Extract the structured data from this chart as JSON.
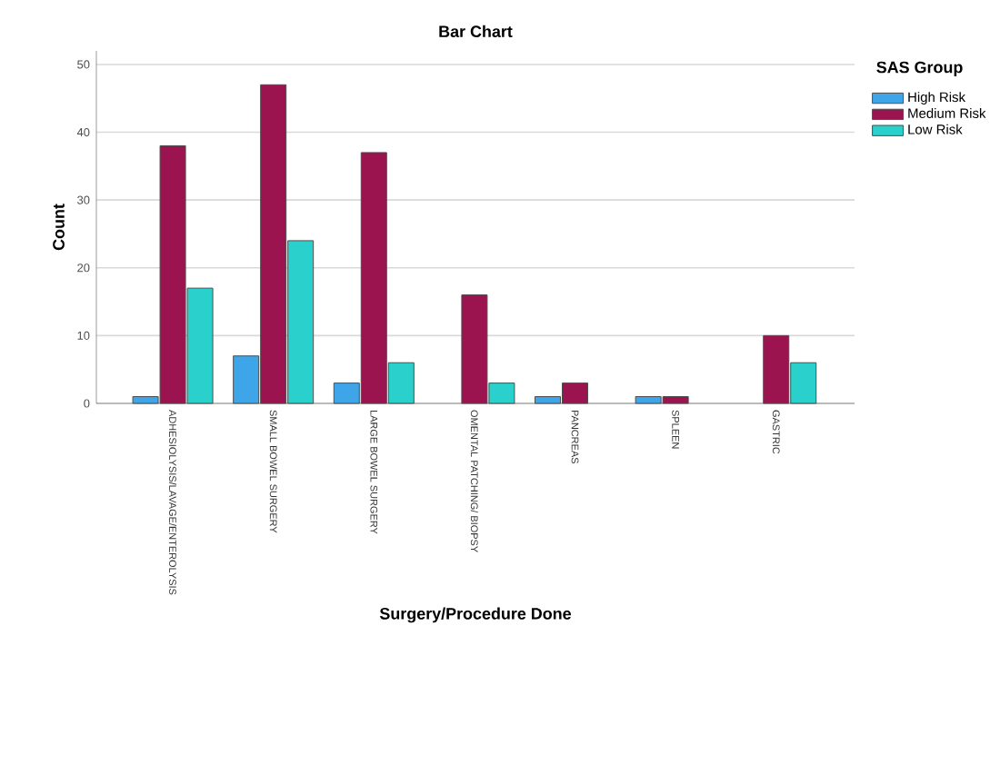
{
  "chart_data": {
    "type": "bar",
    "title": "Bar Chart",
    "xlabel": "Surgery/Procedure Done",
    "ylabel": "Count",
    "legend_title": "SAS Group",
    "categories": [
      "ADHESIOLYSIS/LAVAGE/ENTEROLYSIS",
      "SMALL BOWEL SURGERY",
      "LARGE BOWEL SURGERY",
      "OMENTAL PATCHING/ BIOPSY",
      "PANCREAS",
      "SPLEEN",
      "GASTRIC"
    ],
    "series": [
      {
        "name": "High Risk",
        "color": "#3ea6e8",
        "values": [
          1,
          7,
          3,
          null,
          1,
          1,
          null
        ]
      },
      {
        "name": "Medium Risk",
        "color": "#9b1450",
        "values": [
          38,
          47,
          37,
          16,
          3,
          1,
          10
        ]
      },
      {
        "name": "Low Risk",
        "color": "#2ad1cc",
        "values": [
          17,
          24,
          6,
          3,
          null,
          null,
          6
        ]
      }
    ],
    "ylim": [
      0,
      52
    ],
    "yticks": [
      0,
      10,
      20,
      30,
      40,
      50
    ],
    "grid": "y",
    "legend": "top right"
  }
}
